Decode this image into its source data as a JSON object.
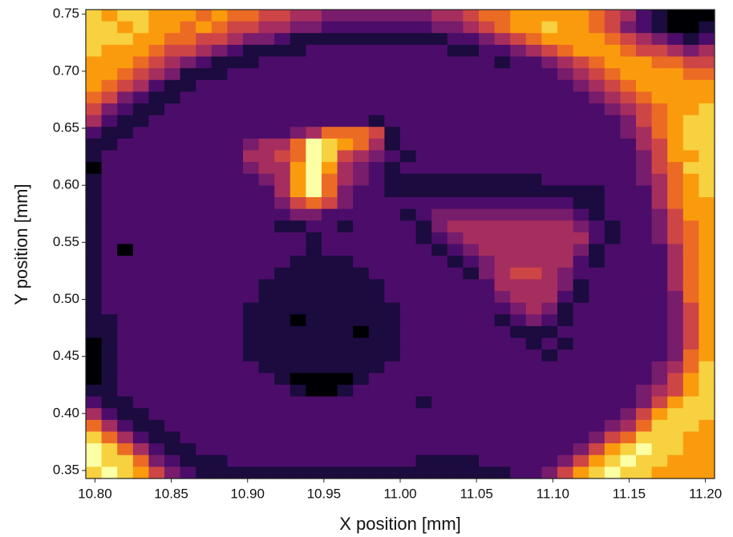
{
  "chart_data": {
    "type": "heatmap",
    "colormap": "inferno",
    "zlim": [
      0,
      9
    ],
    "xlabel": "X position [mm]",
    "ylabel": "Y position [mm]",
    "xlim": [
      10.794,
      11.206
    ],
    "ylim": [
      0.343,
      0.754
    ],
    "xticks": [
      {
        "value": 10.8,
        "label": "10.80"
      },
      10.85,
      {
        "value": 10.9,
        "label": "10.90"
      },
      10.95,
      {
        "value": 11.0,
        "label": "11.00"
      },
      11.05,
      {
        "value": 11.1,
        "label": "11.10"
      },
      11.15,
      {
        "value": 11.2,
        "label": "11.20"
      }
    ],
    "yticks": [
      0.35,
      {
        "value": 0.4,
        "label": "0.40"
      },
      0.45,
      {
        "value": 0.5,
        "label": "0.50"
      },
      0.55,
      {
        "value": 0.6,
        "label": "0.60"
      },
      0.65,
      {
        "value": 0.7,
        "label": "0.70"
      },
      0.75
    ],
    "z": [
      [
        8,
        7,
        8,
        8,
        7,
        7,
        7,
        6,
        7,
        6,
        6,
        5,
        5,
        4,
        4,
        3,
        3,
        3,
        3,
        3,
        3,
        3,
        4,
        4,
        5,
        6,
        6,
        7,
        7,
        7,
        7,
        7,
        6,
        5,
        4,
        2,
        1,
        0,
        0,
        0
      ],
      [
        8,
        8,
        7,
        8,
        7,
        7,
        6,
        7,
        6,
        5,
        5,
        4,
        4,
        3,
        3,
        2,
        2,
        2,
        2,
        2,
        2,
        2,
        3,
        3,
        4,
        5,
        6,
        7,
        7,
        8,
        7,
        7,
        6,
        5,
        3,
        2,
        1,
        0,
        0,
        1
      ],
      [
        8,
        8,
        8,
        7,
        7,
        6,
        6,
        5,
        5,
        4,
        3,
        3,
        2,
        1,
        1,
        1,
        1,
        1,
        1,
        1,
        1,
        1,
        1,
        2,
        2,
        3,
        4,
        5,
        6,
        7,
        7,
        7,
        7,
        6,
        5,
        4,
        3,
        2,
        1,
        2
      ],
      [
        8,
        7,
        7,
        7,
        6,
        5,
        5,
        4,
        3,
        2,
        1,
        1,
        1,
        1,
        2,
        2,
        2,
        2,
        2,
        2,
        2,
        2,
        2,
        1,
        1,
        2,
        2,
        3,
        4,
        5,
        6,
        7,
        7,
        7,
        6,
        5,
        5,
        4,
        3,
        4
      ],
      [
        7,
        7,
        7,
        6,
        5,
        4,
        3,
        2,
        1,
        1,
        1,
        2,
        2,
        2,
        2,
        2,
        2,
        2,
        2,
        2,
        2,
        2,
        2,
        2,
        2,
        2,
        1,
        2,
        2,
        3,
        4,
        5,
        6,
        7,
        7,
        7,
        6,
        6,
        5,
        5
      ],
      [
        7,
        7,
        6,
        5,
        4,
        3,
        1,
        1,
        1,
        2,
        2,
        2,
        2,
        2,
        2,
        2,
        2,
        2,
        2,
        2,
        2,
        2,
        2,
        2,
        2,
        2,
        2,
        2,
        2,
        2,
        3,
        4,
        5,
        6,
        7,
        7,
        7,
        7,
        6,
        6
      ],
      [
        7,
        6,
        5,
        4,
        2,
        1,
        1,
        2,
        2,
        2,
        2,
        2,
        2,
        2,
        2,
        2,
        2,
        2,
        2,
        2,
        2,
        2,
        2,
        2,
        2,
        2,
        2,
        2,
        2,
        2,
        2,
        3,
        4,
        5,
        6,
        7,
        7,
        7,
        7,
        7
      ],
      [
        6,
        5,
        3,
        2,
        1,
        1,
        2,
        2,
        2,
        2,
        2,
        2,
        2,
        2,
        2,
        2,
        2,
        2,
        2,
        2,
        2,
        2,
        2,
        2,
        2,
        2,
        2,
        2,
        2,
        2,
        2,
        2,
        3,
        4,
        5,
        6,
        7,
        7,
        7,
        7
      ],
      [
        5,
        3,
        2,
        1,
        1,
        2,
        2,
        2,
        2,
        2,
        2,
        2,
        2,
        2,
        2,
        2,
        2,
        2,
        2,
        2,
        2,
        2,
        2,
        2,
        2,
        2,
        2,
        2,
        2,
        2,
        2,
        2,
        2,
        3,
        4,
        5,
        6,
        7,
        7,
        8
      ],
      [
        4,
        2,
        1,
        1,
        2,
        2,
        2,
        2,
        2,
        2,
        2,
        2,
        2,
        2,
        2,
        2,
        2,
        2,
        1,
        2,
        2,
        2,
        2,
        2,
        2,
        2,
        2,
        2,
        2,
        2,
        2,
        2,
        2,
        2,
        3,
        5,
        6,
        7,
        8,
        8
      ],
      [
        2,
        1,
        1,
        2,
        2,
        2,
        2,
        2,
        2,
        2,
        2,
        2,
        2,
        3,
        4,
        6,
        6,
        6,
        5,
        1,
        2,
        2,
        2,
        2,
        2,
        2,
        2,
        2,
        2,
        2,
        2,
        2,
        2,
        2,
        3,
        4,
        6,
        7,
        8,
        8
      ],
      [
        1,
        1,
        2,
        2,
        2,
        2,
        2,
        2,
        2,
        2,
        3,
        4,
        4,
        6,
        9,
        8,
        7,
        6,
        4,
        1,
        2,
        2,
        2,
        2,
        2,
        2,
        2,
        2,
        2,
        2,
        2,
        2,
        2,
        2,
        2,
        4,
        5,
        7,
        8,
        8
      ],
      [
        1,
        2,
        2,
        2,
        2,
        2,
        2,
        2,
        2,
        2,
        4,
        4,
        5,
        6,
        9,
        8,
        5,
        4,
        3,
        2,
        1,
        2,
        2,
        2,
        2,
        2,
        2,
        2,
        2,
        2,
        2,
        2,
        2,
        2,
        2,
        3,
        5,
        7,
        7,
        8
      ],
      [
        0,
        2,
        2,
        2,
        2,
        2,
        2,
        2,
        2,
        2,
        3,
        4,
        4,
        7,
        9,
        7,
        4,
        3,
        2,
        1,
        2,
        2,
        2,
        2,
        2,
        2,
        2,
        2,
        2,
        2,
        2,
        2,
        2,
        2,
        2,
        3,
        5,
        6,
        8,
        8
      ],
      [
        1,
        2,
        2,
        2,
        2,
        2,
        2,
        2,
        2,
        2,
        2,
        3,
        4,
        7,
        9,
        6,
        4,
        3,
        2,
        1,
        1,
        1,
        1,
        1,
        1,
        1,
        1,
        1,
        1,
        2,
        2,
        2,
        2,
        2,
        2,
        3,
        4,
        6,
        7,
        8
      ],
      [
        1,
        2,
        2,
        2,
        2,
        2,
        2,
        2,
        2,
        2,
        2,
        2,
        4,
        7,
        9,
        6,
        3,
        2,
        2,
        1,
        1,
        1,
        1,
        1,
        1,
        1,
        1,
        1,
        1,
        1,
        1,
        1,
        1,
        2,
        2,
        2,
        4,
        6,
        7,
        8
      ],
      [
        1,
        2,
        2,
        2,
        2,
        2,
        2,
        2,
        2,
        2,
        2,
        2,
        3,
        5,
        6,
        5,
        3,
        2,
        2,
        2,
        2,
        2,
        2,
        2,
        2,
        2,
        2,
        2,
        2,
        2,
        2,
        1,
        1,
        2,
        2,
        2,
        4,
        6,
        7,
        7
      ],
      [
        1,
        2,
        2,
        2,
        2,
        2,
        2,
        2,
        2,
        2,
        2,
        2,
        2,
        3,
        3,
        2,
        2,
        2,
        2,
        2,
        1,
        2,
        3,
        3,
        3,
        3,
        3,
        3,
        3,
        3,
        3,
        2,
        1,
        2,
        2,
        2,
        3,
        5,
        7,
        7
      ],
      [
        1,
        2,
        2,
        2,
        2,
        2,
        2,
        2,
        2,
        2,
        2,
        2,
        1,
        1,
        2,
        2,
        1,
        2,
        2,
        2,
        2,
        1,
        3,
        4,
        4,
        4,
        4,
        4,
        4,
        4,
        4,
        3,
        2,
        1,
        2,
        2,
        3,
        5,
        6,
        7
      ],
      [
        1,
        2,
        2,
        2,
        2,
        2,
        2,
        2,
        2,
        2,
        2,
        2,
        2,
        2,
        1,
        2,
        2,
        2,
        2,
        2,
        2,
        1,
        2,
        3,
        4,
        4,
        4,
        4,
        4,
        4,
        4,
        4,
        2,
        1,
        2,
        2,
        3,
        5,
        6,
        7
      ],
      [
        1,
        2,
        0,
        2,
        2,
        2,
        2,
        2,
        2,
        2,
        2,
        2,
        2,
        2,
        1,
        2,
        2,
        2,
        2,
        2,
        2,
        2,
        1,
        2,
        3,
        4,
        4,
        4,
        4,
        4,
        4,
        3,
        1,
        2,
        2,
        2,
        2,
        4,
        6,
        7
      ],
      [
        1,
        2,
        2,
        2,
        2,
        2,
        2,
        2,
        2,
        2,
        2,
        2,
        2,
        1,
        1,
        1,
        1,
        2,
        2,
        2,
        2,
        2,
        2,
        1,
        2,
        3,
        4,
        4,
        4,
        4,
        4,
        2,
        1,
        2,
        2,
        2,
        2,
        4,
        6,
        7
      ],
      [
        1,
        2,
        2,
        2,
        2,
        2,
        2,
        2,
        2,
        2,
        2,
        2,
        1,
        1,
        1,
        1,
        1,
        1,
        2,
        2,
        2,
        2,
        2,
        2,
        1,
        3,
        4,
        5,
        5,
        4,
        3,
        2,
        2,
        2,
        2,
        2,
        2,
        4,
        6,
        7
      ],
      [
        1,
        2,
        2,
        2,
        2,
        2,
        2,
        2,
        2,
        2,
        2,
        1,
        1,
        1,
        1,
        1,
        1,
        1,
        1,
        2,
        2,
        2,
        2,
        2,
        2,
        2,
        4,
        4,
        4,
        4,
        3,
        1,
        2,
        2,
        2,
        2,
        2,
        4,
        6,
        7
      ],
      [
        1,
        2,
        2,
        2,
        2,
        2,
        2,
        2,
        2,
        2,
        2,
        1,
        1,
        1,
        1,
        1,
        1,
        1,
        1,
        2,
        2,
        2,
        2,
        2,
        2,
        2,
        3,
        4,
        4,
        4,
        2,
        1,
        2,
        2,
        2,
        2,
        2,
        3,
        6,
        7
      ],
      [
        1,
        2,
        2,
        2,
        2,
        2,
        2,
        2,
        2,
        2,
        1,
        1,
        1,
        1,
        1,
        1,
        1,
        1,
        1,
        1,
        2,
        2,
        2,
        2,
        2,
        2,
        2,
        3,
        4,
        3,
        1,
        2,
        2,
        2,
        2,
        2,
        2,
        3,
        5,
        7
      ],
      [
        1,
        1,
        2,
        2,
        2,
        2,
        2,
        2,
        2,
        2,
        1,
        1,
        1,
        0,
        1,
        1,
        1,
        1,
        1,
        1,
        2,
        2,
        2,
        2,
        2,
        2,
        1,
        2,
        3,
        2,
        1,
        2,
        2,
        2,
        2,
        2,
        2,
        3,
        5,
        7
      ],
      [
        1,
        1,
        2,
        2,
        2,
        2,
        2,
        2,
        2,
        2,
        1,
        1,
        1,
        1,
        1,
        1,
        1,
        0,
        1,
        1,
        2,
        2,
        2,
        2,
        2,
        2,
        2,
        1,
        1,
        1,
        2,
        2,
        2,
        2,
        2,
        2,
        2,
        3,
        5,
        7
      ],
      [
        0,
        1,
        2,
        2,
        2,
        2,
        2,
        2,
        2,
        2,
        1,
        1,
        1,
        1,
        1,
        1,
        1,
        1,
        1,
        1,
        2,
        2,
        2,
        2,
        2,
        2,
        2,
        2,
        1,
        2,
        1,
        2,
        2,
        2,
        2,
        2,
        2,
        3,
        5,
        7
      ],
      [
        0,
        1,
        2,
        2,
        2,
        2,
        2,
        2,
        2,
        2,
        1,
        1,
        1,
        1,
        1,
        1,
        1,
        1,
        1,
        1,
        2,
        2,
        2,
        2,
        2,
        2,
        2,
        2,
        2,
        1,
        2,
        2,
        2,
        2,
        2,
        2,
        2,
        3,
        6,
        7
      ],
      [
        0,
        1,
        2,
        2,
        2,
        2,
        2,
        2,
        2,
        2,
        2,
        1,
        1,
        1,
        1,
        1,
        1,
        1,
        1,
        2,
        2,
        2,
        2,
        2,
        2,
        2,
        2,
        2,
        2,
        2,
        2,
        2,
        2,
        2,
        2,
        2,
        3,
        4,
        6,
        8
      ],
      [
        0,
        1,
        2,
        2,
        2,
        2,
        2,
        2,
        2,
        2,
        2,
        2,
        1,
        0,
        0,
        0,
        0,
        1,
        2,
        2,
        2,
        2,
        2,
        2,
        2,
        2,
        2,
        2,
        2,
        2,
        2,
        2,
        2,
        2,
        2,
        2,
        3,
        5,
        7,
        8
      ],
      [
        1,
        1,
        2,
        2,
        2,
        2,
        2,
        2,
        2,
        2,
        2,
        2,
        2,
        1,
        0,
        0,
        1,
        2,
        2,
        2,
        2,
        2,
        2,
        2,
        2,
        2,
        2,
        2,
        2,
        2,
        2,
        2,
        2,
        2,
        2,
        3,
        4,
        5,
        7,
        8
      ],
      [
        2,
        1,
        1,
        2,
        2,
        2,
        2,
        2,
        2,
        2,
        2,
        2,
        2,
        2,
        2,
        2,
        2,
        2,
        2,
        2,
        2,
        1,
        2,
        2,
        2,
        2,
        2,
        2,
        2,
        2,
        2,
        2,
        2,
        2,
        2,
        3,
        5,
        7,
        8,
        8
      ],
      [
        4,
        2,
        1,
        1,
        2,
        2,
        2,
        2,
        2,
        2,
        2,
        2,
        2,
        2,
        2,
        2,
        2,
        2,
        2,
        2,
        2,
        2,
        2,
        2,
        2,
        2,
        2,
        2,
        2,
        2,
        2,
        2,
        2,
        2,
        3,
        5,
        7,
        8,
        8,
        8
      ],
      [
        6,
        4,
        2,
        1,
        1,
        2,
        2,
        2,
        2,
        2,
        2,
        2,
        2,
        2,
        2,
        2,
        2,
        2,
        2,
        2,
        2,
        2,
        2,
        2,
        2,
        2,
        2,
        2,
        2,
        2,
        2,
        2,
        2,
        3,
        4,
        6,
        8,
        8,
        8,
        7
      ],
      [
        8,
        6,
        4,
        2,
        1,
        1,
        2,
        2,
        2,
        2,
        2,
        2,
        2,
        2,
        2,
        2,
        2,
        2,
        2,
        2,
        2,
        2,
        2,
        2,
        2,
        2,
        2,
        2,
        2,
        2,
        2,
        2,
        3,
        5,
        6,
        8,
        8,
        8,
        7,
        7
      ],
      [
        9,
        8,
        6,
        4,
        2,
        1,
        1,
        2,
        2,
        2,
        2,
        2,
        2,
        2,
        2,
        2,
        2,
        2,
        2,
        2,
        2,
        2,
        2,
        2,
        2,
        2,
        2,
        2,
        2,
        2,
        2,
        3,
        5,
        7,
        8,
        9,
        8,
        8,
        7,
        7
      ],
      [
        9,
        8,
        8,
        6,
        3,
        2,
        1,
        1,
        1,
        2,
        2,
        2,
        2,
        2,
        2,
        2,
        2,
        2,
        2,
        2,
        2,
        1,
        1,
        1,
        1,
        2,
        2,
        2,
        2,
        2,
        3,
        5,
        7,
        8,
        9,
        8,
        8,
        7,
        7,
        7
      ],
      [
        8,
        9,
        8,
        7,
        5,
        3,
        2,
        1,
        1,
        1,
        1,
        1,
        1,
        1,
        1,
        1,
        1,
        1,
        1,
        1,
        1,
        1,
        1,
        1,
        1,
        1,
        1,
        2,
        2,
        3,
        5,
        7,
        8,
        9,
        8,
        8,
        7,
        7,
        7,
        7
      ]
    ]
  }
}
